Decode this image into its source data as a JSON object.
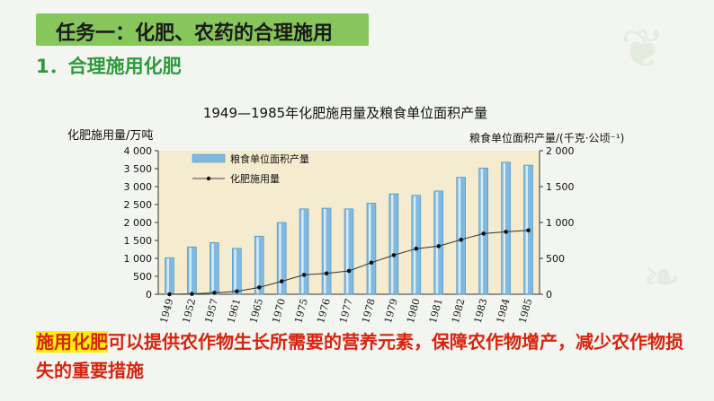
{
  "header": {
    "task_title": "任务一：化肥、农药的合理施用",
    "section_heading": "1．合理施用化肥"
  },
  "description": {
    "highlight": "施用化肥",
    "rest": "可以提供农作物生长所需要的营养元素，保障农作物增产，减少农作物损失的重要措施"
  },
  "colors": {
    "banner": "#86c65a",
    "heading": "#2f9a3c",
    "text_red": "#d9230f",
    "highlight": "#ffef00",
    "plot_bg": "#f5eccf",
    "bar": "#7fb9df"
  },
  "chart_data": {
    "type": "bar",
    "title": "1949—1985年化肥施用量及粮食单位面积产量",
    "ylabel_left": "化肥施用量/万吨",
    "ylabel_right": "粮食单位面积产量/(千克·公顷⁻¹)",
    "categories": [
      "1949",
      "1952",
      "1957",
      "1961",
      "1965",
      "1970",
      "1975",
      "1976",
      "1977",
      "1978",
      "1979",
      "1980",
      "1981",
      "1982",
      "1983",
      "1984",
      "1985"
    ],
    "left_axis": {
      "ylim": [
        0,
        4000
      ],
      "ticks": [
        "0",
        "500",
        "1 000",
        "1 500",
        "2 000",
        "2 500",
        "3 000",
        "3 500",
        "4 000"
      ],
      "values": [
        0,
        500,
        1000,
        1500,
        2000,
        2500,
        3000,
        3500,
        4000
      ]
    },
    "right_axis": {
      "ylim": [
        0,
        2000
      ],
      "ticks": [
        "0",
        "500",
        "1 000",
        "1 500",
        "2 000"
      ],
      "values": [
        0,
        500,
        1000,
        1500,
        2000
      ]
    },
    "series": [
      {
        "name": "粮食单位面积产量",
        "kind": "bar",
        "axis": "right",
        "values": [
          510,
          660,
          720,
          640,
          810,
          1000,
          1190,
          1200,
          1190,
          1270,
          1400,
          1380,
          1440,
          1630,
          1760,
          1840,
          1800
        ]
      },
      {
        "name": "化肥施用量",
        "kind": "line",
        "axis": "left",
        "values": [
          0,
          10,
          40,
          80,
          190,
          360,
          540,
          580,
          650,
          880,
          1090,
          1270,
          1340,
          1520,
          1690,
          1740,
          1780
        ]
      }
    ],
    "legend_position": "top-left",
    "grid": false
  }
}
